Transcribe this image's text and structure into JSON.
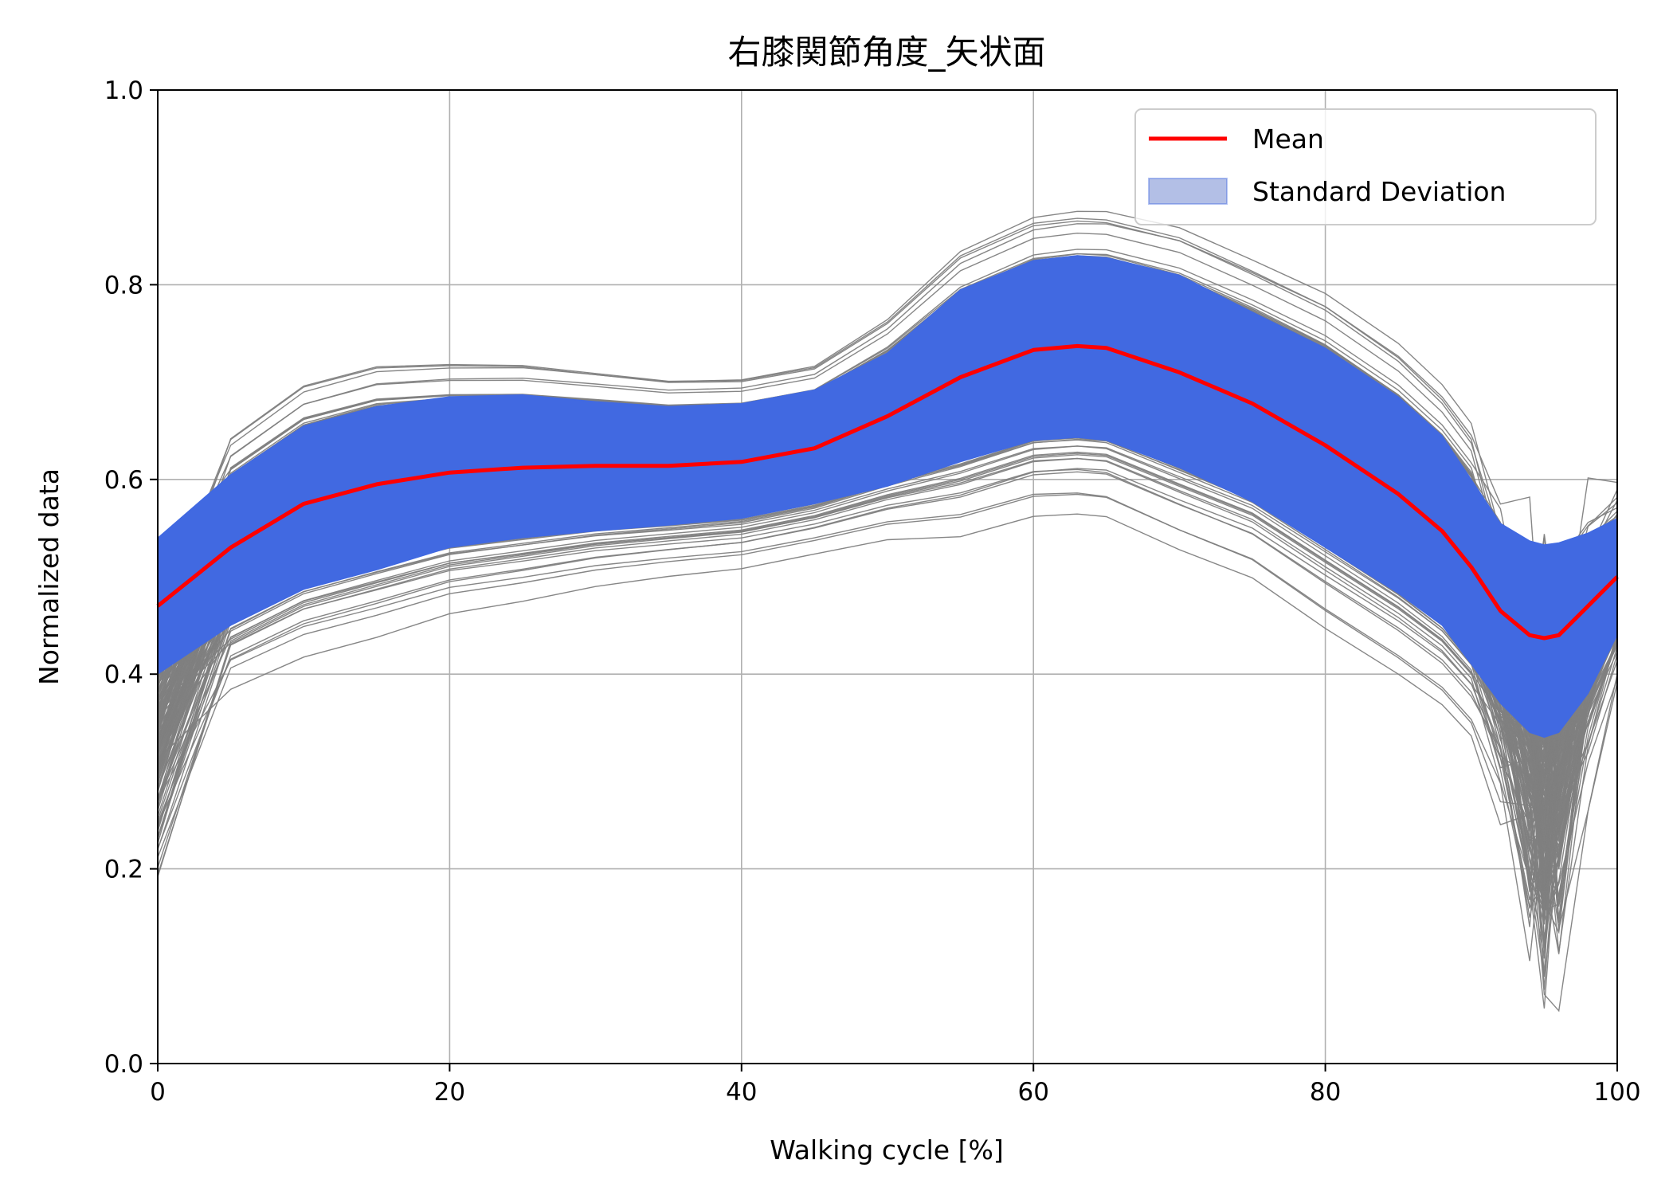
{
  "chart_data": {
    "type": "line",
    "title": "右膝関節角度_矢状面",
    "xlabel": "Walking cycle [%]",
    "ylabel": "Normalized data",
    "xlim": [
      0,
      100
    ],
    "ylim": [
      0.0,
      1.0
    ],
    "xticks": [
      "0",
      "20",
      "40",
      "60",
      "80",
      "100"
    ],
    "yticks": [
      "0.0",
      "0.2",
      "0.4",
      "0.6",
      "0.8",
      "1.0"
    ],
    "grid": true,
    "legend_position": "top-right",
    "colors": {
      "mean": "#ff0000",
      "std_band": "#4169e1",
      "legend_std_patch": "#b3bfe6",
      "individual_trials": "#808080",
      "grid": "#b0b0b0"
    },
    "legend": [
      {
        "label": "Mean",
        "kind": "line"
      },
      {
        "label": "Standard Deviation",
        "kind": "patch"
      }
    ],
    "x": [
      0,
      5,
      10,
      15,
      20,
      25,
      30,
      35,
      40,
      45,
      50,
      55,
      60,
      63,
      65,
      70,
      75,
      80,
      85,
      88,
      90,
      92,
      94,
      95,
      96,
      98,
      100
    ],
    "series": [
      {
        "name": "Mean",
        "values": [
          0.47,
          0.53,
          0.575,
          0.595,
          0.607,
          0.612,
          0.614,
          0.614,
          0.618,
          0.632,
          0.665,
          0.705,
          0.733,
          0.737,
          0.735,
          0.71,
          0.678,
          0.635,
          0.585,
          0.547,
          0.51,
          0.465,
          0.44,
          0.437,
          0.44,
          0.47,
          0.5
        ]
      },
      {
        "name": "Standard Deviation",
        "lower": [
          0.4,
          0.45,
          0.487,
          0.507,
          0.53,
          0.54,
          0.547,
          0.553,
          0.56,
          0.575,
          0.593,
          0.618,
          0.64,
          0.643,
          0.64,
          0.612,
          0.577,
          0.53,
          0.483,
          0.45,
          0.41,
          0.37,
          0.34,
          0.335,
          0.34,
          0.38,
          0.44
        ],
        "upper": [
          0.54,
          0.605,
          0.655,
          0.675,
          0.685,
          0.687,
          0.68,
          0.675,
          0.678,
          0.692,
          0.73,
          0.795,
          0.825,
          0.83,
          0.828,
          0.81,
          0.772,
          0.735,
          0.685,
          0.645,
          0.6,
          0.555,
          0.537,
          0.533,
          0.535,
          0.545,
          0.56
        ]
      }
    ]
  }
}
